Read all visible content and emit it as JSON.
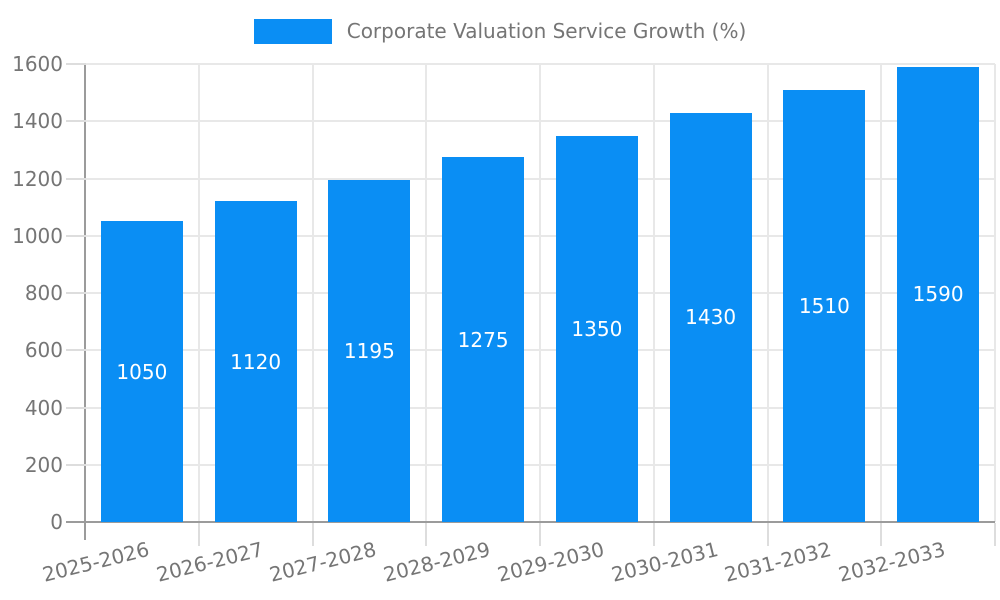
{
  "legend": {
    "label": "Corporate Valuation Service Growth (%)"
  },
  "chart_data": {
    "type": "bar",
    "title": "Corporate Valuation Service Growth (%)",
    "categories": [
      "2025-2026",
      "2026-2027",
      "2027-2028",
      "2028-2029",
      "2029-2030",
      "2030-2031",
      "2031-2032",
      "2032-2033"
    ],
    "values": [
      1050,
      1120,
      1195,
      1275,
      1350,
      1430,
      1510,
      1590
    ],
    "bar_value_labels": [
      "1050",
      "1120",
      "1195",
      "1275",
      "1350",
      "1430",
      "1510",
      "1590"
    ],
    "xlabel": "",
    "ylabel": "",
    "ylim": [
      0,
      1600
    ],
    "yticks": [
      0,
      200,
      400,
      600,
      800,
      1000,
      1200,
      1400,
      1600
    ],
    "grid": true,
    "legend_position": "top-center",
    "bar_labels_inside": true,
    "x_label_rotation_deg": -14,
    "colors": {
      "bar": "#0a8ef4",
      "bar_label": "#ffffff",
      "axis_text": "#757575",
      "axis_line": "#9b9b9b",
      "gridline": "#e8e8e8",
      "tick": "#dddddd"
    }
  }
}
